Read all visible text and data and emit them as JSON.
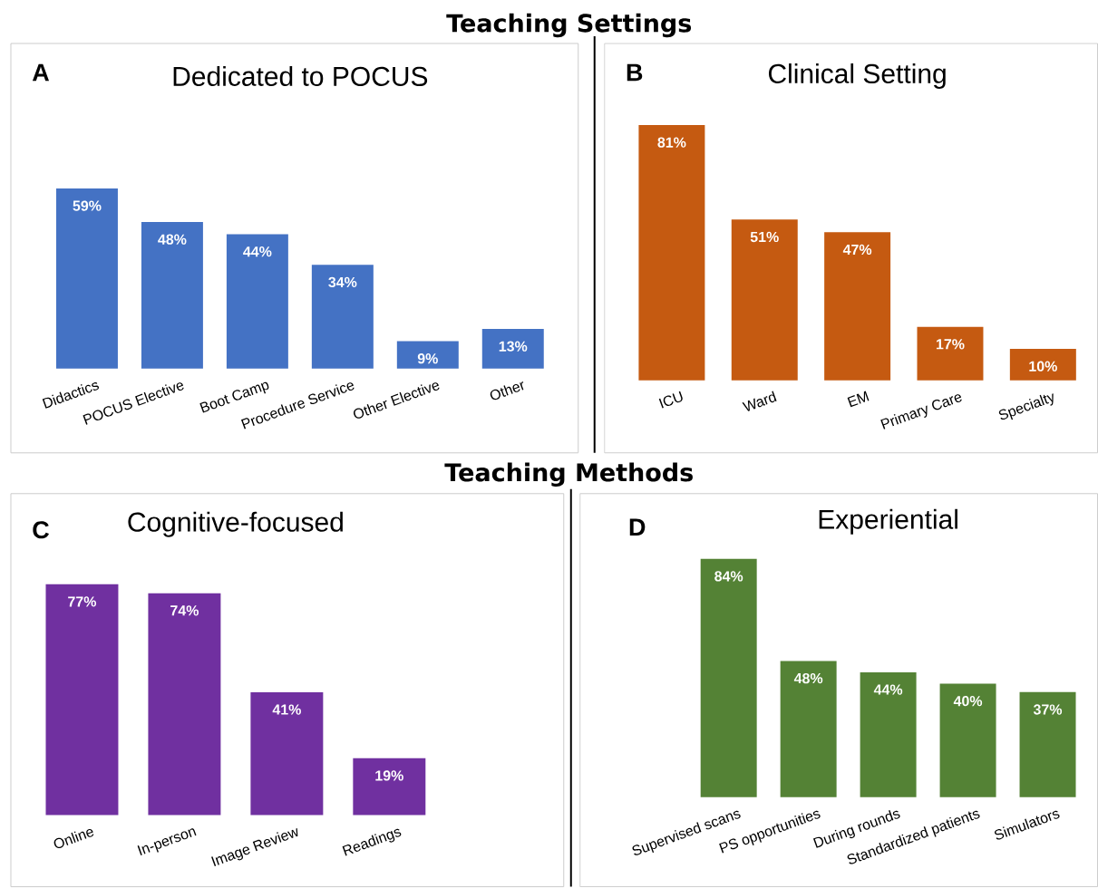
{
  "chart_data": [
    {
      "type": "bar",
      "title": "Dedicated to POCUS",
      "annotations": [
        "Teaching Settings",
        "A"
      ],
      "categories": [
        "Didactics",
        "POCUS Elective",
        "Boot Camp",
        "Procedure Service",
        "Other Elective",
        "Other"
      ],
      "values": [
        59,
        48,
        44,
        34,
        9,
        13
      ],
      "value_labels": [
        "59%",
        "48%",
        "44%",
        "34%",
        "9%",
        "13%"
      ],
      "color": "#4472c4"
    },
    {
      "type": "bar",
      "title": "Clinical Setting",
      "annotations": [
        "B"
      ],
      "categories": [
        "ICU",
        "Ward",
        "EM",
        "Primary Care",
        "Specialty"
      ],
      "values": [
        81,
        51,
        47,
        17,
        10
      ],
      "value_labels": [
        "81%",
        "51%",
        "47%",
        "17%",
        "10%"
      ],
      "color": "#c55a11"
    },
    {
      "type": "bar",
      "title": "Cognitive-focused",
      "annotations": [
        "Teaching Methods",
        "C"
      ],
      "categories": [
        "Online",
        "In-person",
        "Image Review",
        "Readings"
      ],
      "values": [
        77,
        74,
        41,
        19
      ],
      "value_labels": [
        "77%",
        "74%",
        "41%",
        "19%"
      ],
      "color": "#7030a0"
    },
    {
      "type": "bar",
      "title": "Experiential",
      "annotations": [
        "D"
      ],
      "categories": [
        "Supervised scans",
        "PS opportunities",
        "During rounds",
        "Standardized patients",
        "Simulators"
      ],
      "values": [
        84,
        48,
        44,
        40,
        37
      ],
      "value_labels": [
        "84%",
        "48%",
        "44%",
        "40%",
        "37%"
      ],
      "color": "#548235"
    }
  ]
}
